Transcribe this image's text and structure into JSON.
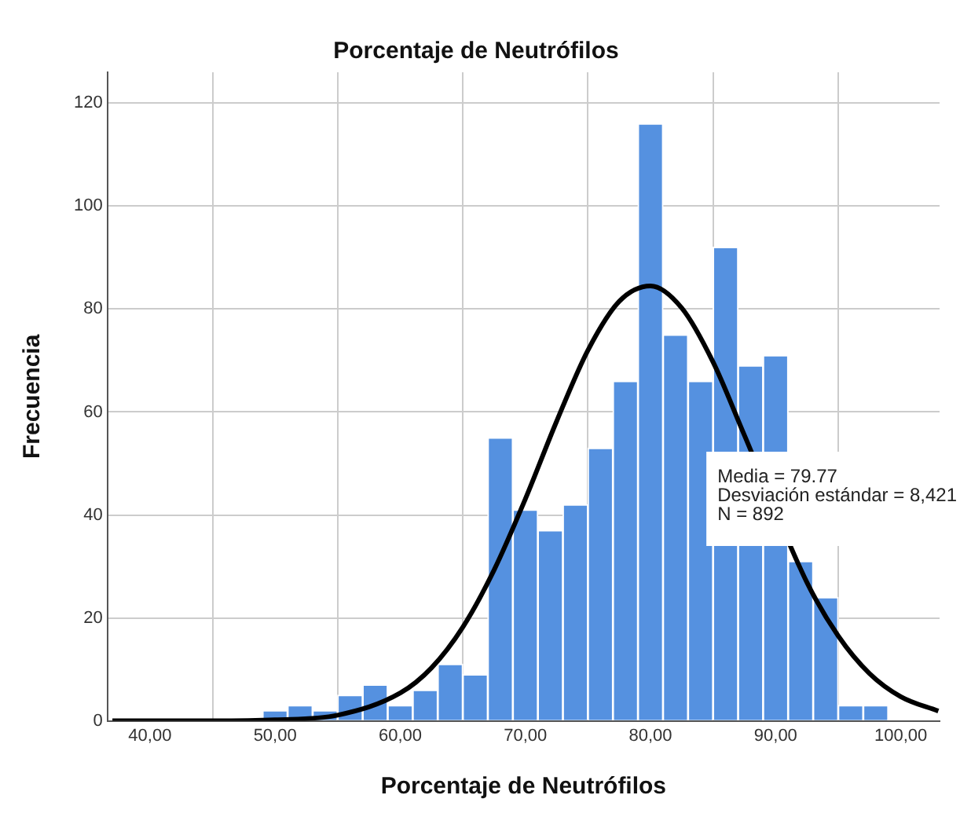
{
  "chart_data": {
    "type": "histogram",
    "title": "Porcentaje de Neutrófilos",
    "xlabel": "Porcentaje de Neutrófilos",
    "ylabel": "Frecuencia",
    "bins": [
      49,
      51,
      53,
      55,
      57,
      59,
      61,
      63,
      65,
      67,
      69,
      71,
      73,
      75,
      77,
      79,
      81,
      83,
      85,
      87,
      89,
      91,
      93,
      95,
      97,
      99
    ],
    "values": [
      2,
      3,
      2,
      5,
      7,
      3,
      6,
      11,
      9,
      55,
      41,
      37,
      42,
      53,
      66,
      116,
      75,
      66,
      92,
      69,
      71,
      31,
      24,
      3,
      3
    ],
    "color": "#5591e0",
    "series": [
      {
        "type": "line",
        "color": "#000000",
        "x": [
          37,
          45,
          50,
          55,
          60,
          62.5,
          65,
          67.5,
          70,
          72.5,
          75,
          77.5,
          80,
          82.5,
          85,
          87.5,
          90,
          92.5,
          95,
          97.5,
          100,
          103
        ],
        "values": [
          0,
          0,
          0.2,
          1.1,
          5.4,
          10.3,
          18.2,
          29.3,
          43.1,
          58.2,
          72.0,
          81.5,
          84.5,
          80.2,
          69.7,
          55.5,
          null,
          26.9,
          16.5,
          9.2,
          4.7,
          1.9
        ]
      }
    ],
    "xlim": [
      36.6,
      103.1
    ],
    "ylim": [
      0,
      126
    ],
    "xticks": [
      {
        "value": 40,
        "label": "40,00"
      },
      {
        "value": 50,
        "label": "50,00"
      },
      {
        "value": 60,
        "label": "60,00"
      },
      {
        "value": 70,
        "label": "70,00"
      },
      {
        "value": 80,
        "label": "80,00"
      },
      {
        "value": 90,
        "label": "90,00"
      },
      {
        "value": 100,
        "label": "100,00"
      }
    ],
    "yticks": [
      0,
      20,
      40,
      60,
      80,
      100,
      120
    ],
    "grid": true,
    "legend": false,
    "marker": "none",
    "line_style": "solid",
    "annotations": [
      "Media = 79.77",
      "Desviación estándar = 8,421",
      "N = 892"
    ]
  }
}
